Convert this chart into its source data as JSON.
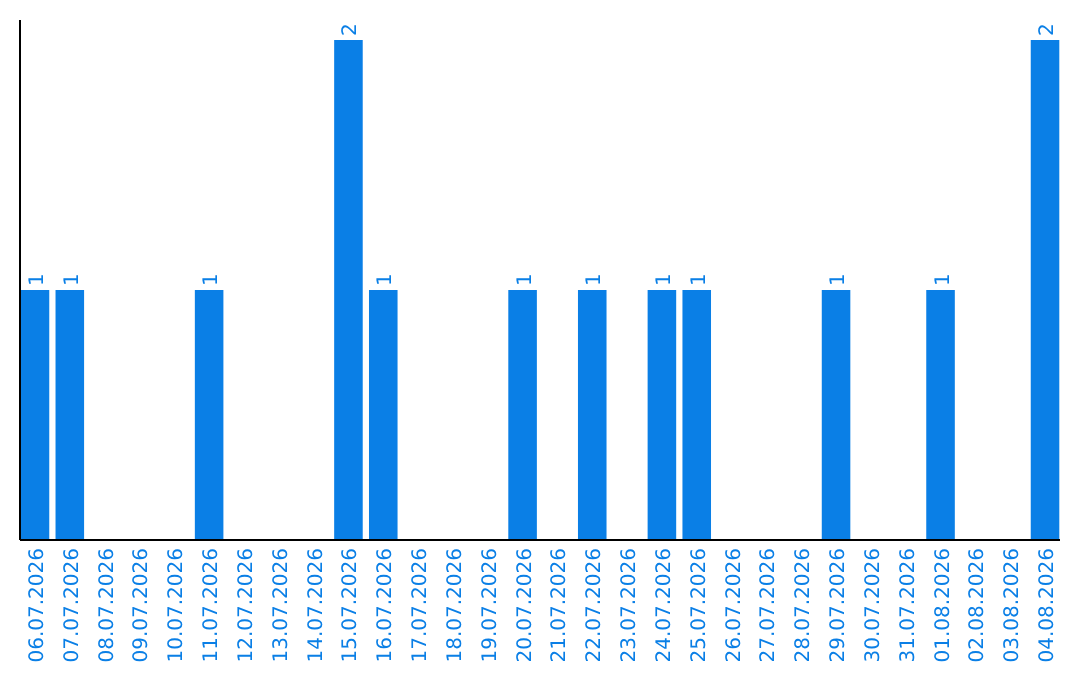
{
  "chart_data": {
    "type": "bar",
    "categories": [
      "06.07.2026",
      "07.07.2026",
      "08.07.2026",
      "09.07.2026",
      "10.07.2026",
      "11.07.2026",
      "12.07.2026",
      "13.07.2026",
      "14.07.2026",
      "15.07.2026",
      "16.07.2026",
      "17.07.2026",
      "18.07.2026",
      "19.07.2026",
      "20.07.2026",
      "21.07.2026",
      "22.07.2026",
      "23.07.2026",
      "24.07.2026",
      "25.07.2026",
      "26.07.2026",
      "27.07.2026",
      "28.07.2026",
      "29.07.2026",
      "30.07.2026",
      "31.07.2026",
      "01.08.2026",
      "02.08.2026",
      "03.08.2026",
      "04.08.2026"
    ],
    "values": [
      1,
      1,
      0,
      0,
      0,
      1,
      0,
      0,
      0,
      2,
      1,
      0,
      0,
      0,
      1,
      0,
      1,
      0,
      1,
      1,
      0,
      0,
      0,
      1,
      0,
      0,
      1,
      0,
      0,
      2
    ],
    "value_labels": [
      "1",
      "1",
      null,
      null,
      null,
      "1",
      null,
      null,
      null,
      "2",
      "1",
      null,
      null,
      null,
      "1",
      null,
      "1",
      null,
      "1",
      "1",
      null,
      null,
      null,
      "1",
      null,
      null,
      "1",
      null,
      null,
      "2"
    ],
    "color": "#0a7fe6",
    "tick_labels": "x"
  }
}
